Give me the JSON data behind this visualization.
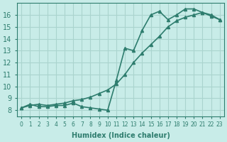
{
  "line1_x": [
    0,
    1,
    2,
    3,
    4,
    5,
    6,
    7,
    8,
    9,
    10,
    11,
    12,
    13,
    14,
    15,
    16,
    17,
    18,
    19,
    20,
    21,
    22,
    23
  ],
  "line1_y": [
    8.2,
    8.5,
    8.3,
    8.3,
    8.4,
    8.4,
    8.6,
    8.3,
    8.2,
    8.1,
    8.0,
    10.5,
    13.2,
    13.0,
    14.7,
    16.0,
    16.3,
    15.6,
    16.0,
    16.5,
    16.5,
    16.2,
    15.9,
    15.6
  ],
  "line2_x": [
    0,
    1,
    2,
    3,
    4,
    5,
    6,
    7,
    8,
    9,
    10,
    11,
    12,
    13,
    14,
    15,
    16,
    17,
    18,
    19,
    20,
    21,
    22,
    23
  ],
  "line2_y": [
    8.2,
    8.4,
    8.5,
    8.4,
    8.5,
    8.6,
    8.8,
    8.9,
    9.1,
    9.4,
    9.7,
    10.2,
    11.0,
    12.0,
    12.8,
    13.5,
    14.2,
    15.0,
    15.5,
    15.8,
    16.0,
    16.2,
    16.0,
    15.6
  ],
  "line_color": "#2e7d6e",
  "bg_color": "#c8ece8",
  "grid_color": "#aad4ce",
  "xlabel": "Humidex (Indice chaleur)",
  "ylim": [
    7.5,
    17
  ],
  "xlim": [
    -0.5,
    23.5
  ],
  "yticks": [
    8,
    9,
    10,
    11,
    12,
    13,
    14,
    15,
    16
  ],
  "xticks": [
    0,
    1,
    2,
    3,
    4,
    5,
    6,
    7,
    8,
    9,
    10,
    11,
    12,
    13,
    14,
    15,
    16,
    17,
    18,
    19,
    20,
    21,
    22,
    23
  ],
  "xtick_labels": [
    "0",
    "1",
    "2",
    "3",
    "4",
    "5",
    "6",
    "7",
    "8",
    "9",
    "10",
    "11",
    "12",
    "13",
    "14",
    "15",
    "16",
    "17",
    "18",
    "19",
    "20",
    "21",
    "22",
    "23"
  ],
  "marker": "^",
  "markersize": 3,
  "linewidth": 1.2
}
